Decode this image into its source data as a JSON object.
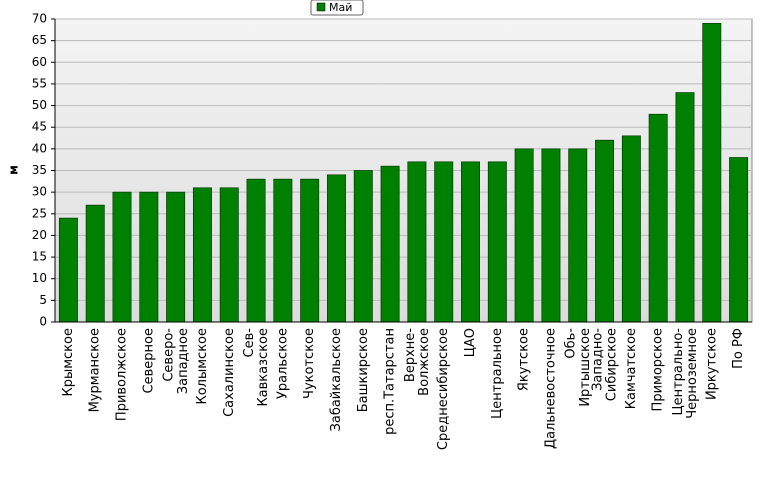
{
  "chart_data": {
    "type": "bar",
    "ylabel": "м",
    "categories": [
      "Крымское",
      "Мурманское",
      "Приволжское",
      "Северное",
      "Северо-Западное",
      "Колымское",
      "Сахалинское",
      "Сев-Кавказское",
      "Уральское",
      "Чукотское",
      "Забайкальское",
      "Башкирское",
      "респ.Татарстан",
      "Верхне-Волжское",
      "Среднесибирское",
      "ЦАО",
      "Центральное",
      "Якутское",
      "Дальневосточное",
      "Обь-Иртышское",
      "Западно-Сибирское",
      "Камчатское",
      "Приморское",
      "Центрально-Черноземное",
      "Иркутское",
      "По РФ"
    ],
    "series": [
      {
        "name": "Май",
        "color": "#008000",
        "values": [
          24,
          27,
          30,
          30,
          30,
          31,
          31,
          33,
          33,
          33,
          34,
          35,
          36,
          37,
          37,
          37,
          37,
          40,
          40,
          40,
          42,
          43,
          48,
          53,
          69,
          38
        ]
      }
    ],
    "ylim": [
      0,
      70
    ],
    "yticks": [
      0,
      5,
      10,
      15,
      20,
      25,
      30,
      35,
      40,
      45,
      50,
      55,
      60,
      65,
      70
    ],
    "grid": true
  }
}
